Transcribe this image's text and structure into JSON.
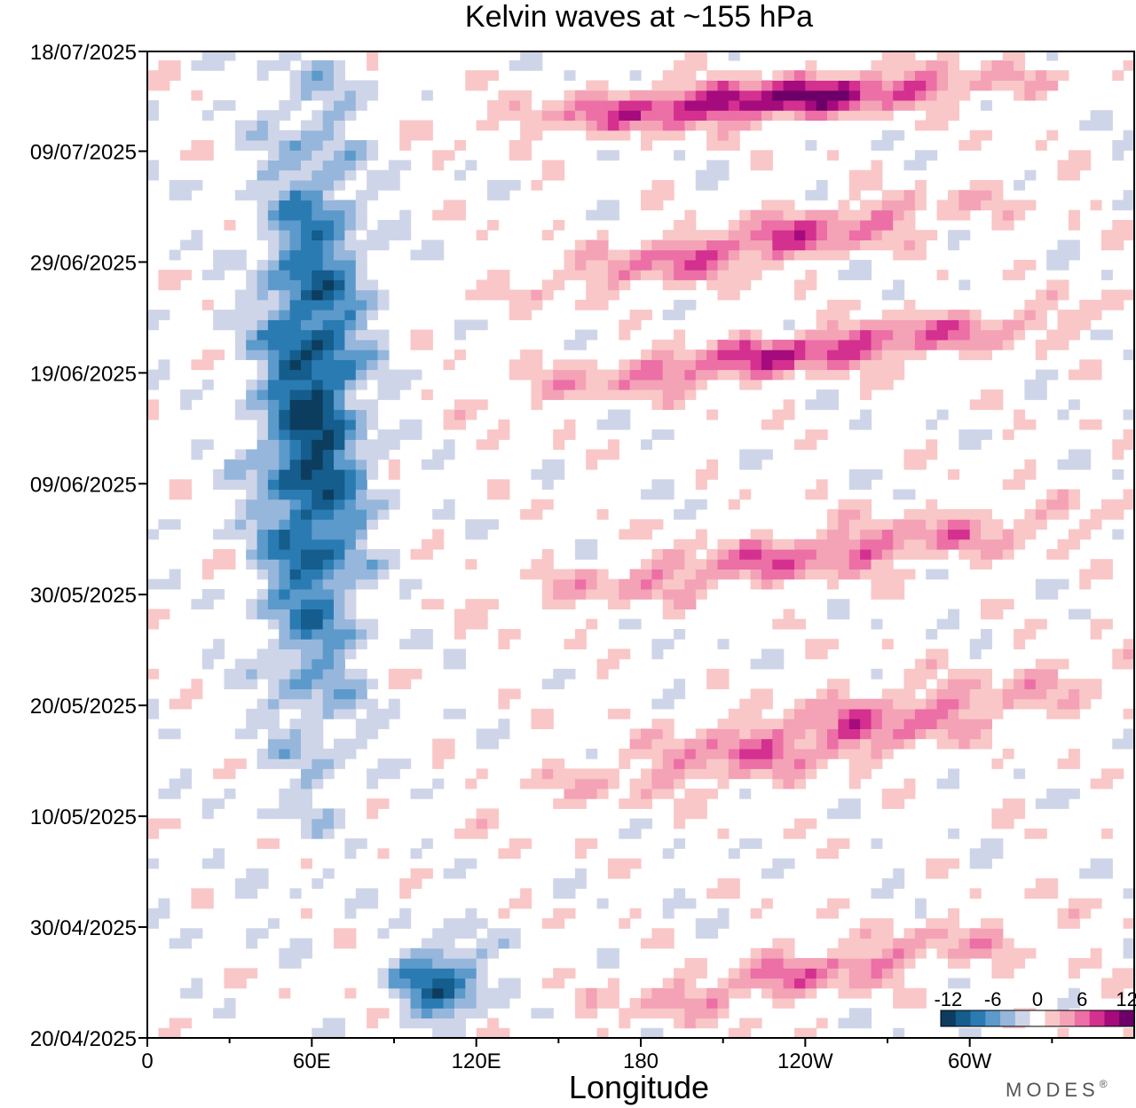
{
  "chart_data": {
    "type": "heatmap",
    "title": "Kelvin waves at ~155 hPa",
    "xlabel": "Longitude",
    "ylabel": "",
    "x_ticks": [
      "0",
      "60E",
      "120E",
      "180",
      "120W",
      "60W"
    ],
    "x_tick_values": [
      0,
      60,
      120,
      180,
      240,
      300
    ],
    "xlim": [
      0,
      360
    ],
    "y_ticks": [
      "20/04/2025",
      "30/04/2025",
      "10/05/2025",
      "20/05/2025",
      "30/05/2025",
      "09/06/2025",
      "19/06/2025",
      "29/06/2025",
      "09/07/2025",
      "18/07/2025"
    ],
    "y_tick_values": [
      0,
      10,
      20,
      30,
      40,
      50,
      60,
      70,
      80,
      89
    ],
    "ylim": [
      0,
      89
    ],
    "colorbar": {
      "labels": [
        "-12",
        "-6",
        "0",
        "6",
        "12"
      ],
      "label_values": [
        -12,
        -6,
        0,
        6,
        12
      ],
      "levels": [
        -12,
        -10,
        -8,
        -6,
        -4,
        -2,
        2,
        4,
        6,
        8,
        10,
        12
      ],
      "colors": [
        "#0c3d5e",
        "#145d8c",
        "#2b7bb3",
        "#5c9acb",
        "#96b7db",
        "#cfd5e9",
        "#ffffff",
        "#f9c7c7",
        "#f4a2b6",
        "#ec6fa6",
        "#d4308f",
        "#a50b7d",
        "#6d0068"
      ],
      "placement": "bottom-right"
    },
    "features": [
      {
        "name": "eastward-positive-band",
        "sign": "positive",
        "peak": 12,
        "lon_start": 130,
        "lon_end": 320,
        "t_start": 82,
        "t_end": 89
      },
      {
        "name": "eastward-positive-band",
        "sign": "positive",
        "peak": 8,
        "lon_start": 135,
        "lon_end": 310,
        "t_start": 66,
        "t_end": 81
      },
      {
        "name": "eastward-positive-band",
        "sign": "positive",
        "peak": 9,
        "lon_start": 130,
        "lon_end": 350,
        "t_start": 57,
        "t_end": 70
      },
      {
        "name": "eastward-positive-band",
        "sign": "positive",
        "peak": 7,
        "lon_start": 125,
        "lon_end": 360,
        "t_start": 38,
        "t_end": 53
      },
      {
        "name": "eastward-positive-band",
        "sign": "positive",
        "peak": 7,
        "lon_start": 140,
        "lon_end": 360,
        "t_start": 20,
        "t_end": 40
      },
      {
        "name": "eastward-positive-band",
        "sign": "positive",
        "peak": 6,
        "lon_start": 150,
        "lon_end": 340,
        "t_start": 0,
        "t_end": 16
      },
      {
        "name": "negative-column",
        "sign": "negative",
        "peak": -12,
        "lon_start": 20,
        "lon_end": 100,
        "t_start": 22,
        "t_end": 89
      },
      {
        "name": "negative-patch",
        "sign": "negative",
        "peak": -10,
        "lon_start": 75,
        "lon_end": 140,
        "t_start": 0,
        "t_end": 10
      }
    ]
  },
  "brand": {
    "text": "MODES",
    "mark": "®"
  }
}
